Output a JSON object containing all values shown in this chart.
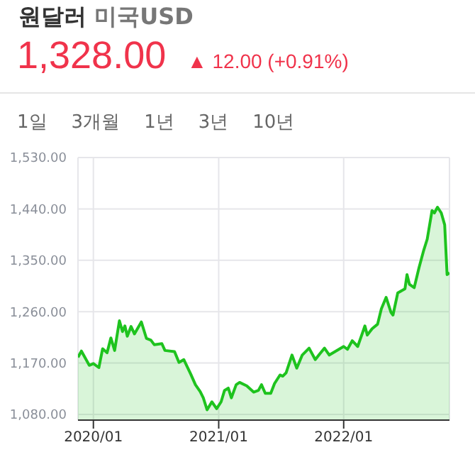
{
  "chart_data": {
    "type": "area",
    "title": "원달러",
    "subtitle": "미국USD",
    "annotations": [
      "1,328.00",
      "▲ 12.00 (+0.91%)",
      "1일",
      "3개월",
      "1년",
      "3년",
      "10년"
    ],
    "x": [
      "2019-11-17",
      "2019-11-27",
      "2019-12-20",
      "2020-01-01",
      "2020-01-17",
      "2020-01-28",
      "2020-02-10",
      "2020-02-21",
      "2020-03-03",
      "2020-03-17",
      "2020-03-26",
      "2020-04-02",
      "2020-04-09",
      "2020-04-20",
      "2020-04-30",
      "2020-05-20",
      "2020-06-04",
      "2020-06-17",
      "2020-06-27",
      "2020-07-19",
      "2020-07-28",
      "2020-08-25",
      "2020-09-07",
      "2020-09-21",
      "2020-10-11",
      "2020-10-25",
      "2020-11-08",
      "2020-11-17",
      "2020-11-28",
      "2020-12-12",
      "2020-12-26",
      "2021-01-08",
      "2021-01-18",
      "2021-01-29",
      "2021-02-07",
      "2021-02-21",
      "2021-03-03",
      "2021-03-24",
      "2021-04-13",
      "2021-04-27",
      "2021-05-06",
      "2021-05-17",
      "2021-06-02",
      "2021-06-13",
      "2021-06-29",
      "2021-07-07",
      "2021-07-17",
      "2021-08-03",
      "2021-08-17",
      "2021-09-02",
      "2021-09-22",
      "2021-10-10",
      "2021-10-23",
      "2021-11-06",
      "2021-11-20",
      "2022-01-01",
      "2022-01-12",
      "2022-01-26",
      "2022-02-11",
      "2022-03-04",
      "2022-03-11",
      "2022-03-25",
      "2022-04-10",
      "2022-04-21",
      "2022-05-05",
      "2022-05-19",
      "2022-05-25",
      "2022-06-08",
      "2022-06-29",
      "2022-07-05",
      "2022-07-12",
      "2022-07-26",
      "2022-08-09",
      "2022-08-22",
      "2022-09-02",
      "2022-09-16",
      "2022-09-23",
      "2022-10-02",
      "2022-10-13",
      "2022-10-23",
      "2022-10-30",
      "2022-11-06"
    ],
    "series": [
      {
        "color": "#1ec31e",
        "values": [
          1180,
          1191,
          1166,
          1169,
          1162,
          1195,
          1188,
          1214,
          1192,
          1244,
          1225,
          1235,
          1217,
          1234,
          1221,
          1242,
          1213,
          1210,
          1202,
          1204,
          1192,
          1190,
          1171,
          1176,
          1151,
          1132,
          1120,
          1109,
          1088,
          1102,
          1090,
          1102,
          1122,
          1126,
          1109,
          1132,
          1136,
          1130,
          1119,
          1122,
          1132,
          1117,
          1117,
          1134,
          1149,
          1147,
          1153,
          1184,
          1161,
          1184,
          1196,
          1176,
          1186,
          1196,
          1184,
          1199,
          1194,
          1209,
          1199,
          1235,
          1219,
          1230,
          1238,
          1265,
          1285,
          1259,
          1254,
          1293,
          1300,
          1325,
          1308,
          1302,
          1337,
          1366,
          1387,
          1437,
          1433,
          1443,
          1433,
          1412,
          1325,
          1328
        ]
      }
    ],
    "xlim": [
      "2019-11-17",
      "2022-11-06"
    ],
    "xticks": [
      {
        "value": "2020-01-01",
        "label": "2020/01"
      },
      {
        "value": "2021-01-01",
        "label": "2021/01"
      },
      {
        "value": "2022-01-01",
        "label": "2022/01"
      }
    ],
    "ylim": [
      1070,
      1530
    ],
    "yticks": [
      {
        "value": 1080,
        "label": "1,080.00"
      },
      {
        "value": 1170,
        "label": "1,170.00"
      },
      {
        "value": 1260,
        "label": "1,260.00"
      },
      {
        "value": 1350,
        "label": "1,350.00"
      },
      {
        "value": 1440,
        "label": "1,440.00"
      },
      {
        "value": 1530,
        "label": "1,530.00"
      }
    ],
    "grid": true
  }
}
